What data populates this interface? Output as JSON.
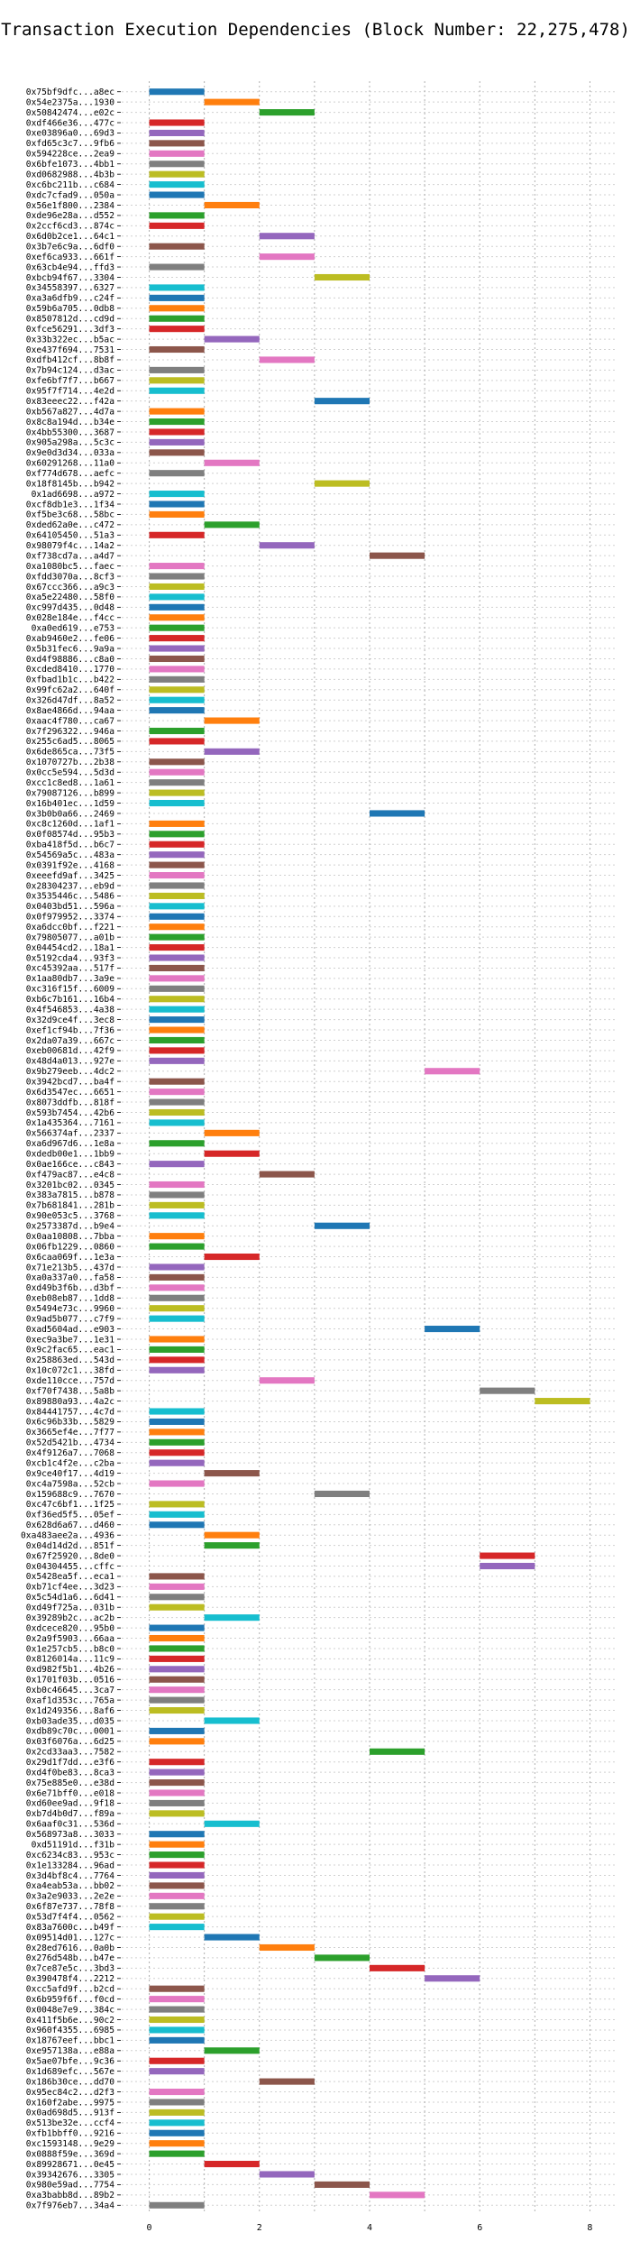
{
  "chart_data": {
    "type": "bar",
    "orientation": "horizontal-gantt",
    "title": "Transaction Execution Dependencies (Block Number: 22,275,478)",
    "xlabel": "",
    "ylabel": "",
    "xlim": [
      -0.5,
      8.5
    ],
    "xticks": [
      0,
      2,
      4,
      6,
      8
    ],
    "grid": true,
    "colors": [
      "#1f77b4",
      "#ff7f0e",
      "#2ca02c",
      "#d62728",
      "#9467bd",
      "#8c564b",
      "#e377c2",
      "#7f7f7f",
      "#bcbd22",
      "#17becf"
    ],
    "transactions": [
      "0x75bf9dfc...a8ec",
      "0x54e2375a...1930",
      "0x50842474...e02c",
      "0xdf466e36...477c",
      "0xe03896a0...69d3",
      "0xfd65c3c7...9fb6",
      "0x594228ce...2ea9",
      "0x6bfe1073...4bb1",
      "0xd0682988...4b3b",
      "0xc6bc211b...c684",
      "0xdc7cfad9...050a",
      "0x56e1f800...2384",
      "0xde96e28a...d552",
      "0x2ccf6cd3...874c",
      "0x6d0b2ce1...64c1",
      "0x3b7e6c9a...6df0",
      "0xef6ca933...661f",
      "0x63cb4e94...ffd3",
      "0xbcb94f67...3304",
      "0x34558397...6327",
      "0xa3a6dfb9...c24f",
      "0x59b6a705...0db8",
      "0x8507812d...cd9d",
      "0xfce56291...3df3",
      "0x33b322ec...b5ac",
      "0xe437f694...7531",
      "0xdfb412cf...8b8f",
      "0x7b94c124...d3ac",
      "0xfe6bf7f7...b667",
      "0x95f7f714...4e2d",
      "0x83eeec22...f42a",
      "0xb567a827...4d7a",
      "0x8c8a194d...b34e",
      "0x4bb55300...3687",
      "0x905a298a...5c3c",
      "0x9e0d3d34...033a",
      "0x60291268...11a0",
      "0xf774d678...aefc",
      "0x18f8145b...b942",
      "0x1ad6698...a972",
      "0xcf8db1e3...1f34",
      "0xf5be3c68...58bc",
      "0xded62a0e...c472",
      "0x64105450...51a3",
      "0x98079f4c...14a2",
      "0xf738cd7a...a4d7",
      "0xa1080bc5...faec",
      "0xfdd3070a...8cf3",
      "0x67ccc366...a9c3",
      "0xa5e22480...58f0",
      "0xc997d435...0d48",
      "0x028e184e...f4cc",
      "0xa0ed619...e753",
      "0xab9460e2...fe06",
      "0x5b31fec6...9a9a",
      "0xd4f98886...c8a0",
      "0xcded8410...1770",
      "0xfbad1b1c...b422",
      "0x99fc62a2...640f",
      "0x326d47df...8a52",
      "0x8ae4866d...94aa",
      "0xaac4f780...ca67",
      "0x7f296322...946a",
      "0x255c6ad5...8065",
      "0x6de865ca...73f5",
      "0x1070727b...2b38",
      "0x0cc5e594...5d3d",
      "0xcc1c8ed8...1a61",
      "0x79087126...b899",
      "0x16b401ec...1d59",
      "0x3b0b0a66...2469",
      "0xc8c1260d...1af1",
      "0x0f08574d...95b3",
      "0xba418f5d...b6c7",
      "0x54569a5c...483a",
      "0x0391f92e...4168",
      "0xeeefd9af...3425",
      "0x28304237...eb9d",
      "0x3535446c...5486",
      "0x0403bd51...596a",
      "0x0f979952...3374",
      "0xa6dcc0bf...f221",
      "0x79805077...a01b",
      "0x04454cd2...18a1",
      "0x5192cda4...93f3",
      "0xc45392aa...517f",
      "0x1aa80db7...3a9e",
      "0xc316f15f...6009",
      "0xb6c7b161...16b4",
      "0x4f546853...4a38",
      "0x32d9ce4f...3ec8",
      "0xef1cf94b...7f36",
      "0x2da07a39...667c",
      "0xeb00681d...42f9",
      "0x48d4a013...927e",
      "0x9b279eeb...4dc2",
      "0x3942bcd7...ba4f",
      "0x6d3547ec...6651",
      "0x8073ddfb...818f",
      "0x593b7454...42b6",
      "0x1a435364...7161",
      "0x566374af...2337",
      "0xa6d967d6...1e8a",
      "0xdedb00e1...1bb9",
      "0x0ae166ce...c843",
      "0xf479ac87...e4c8",
      "0x3201bc02...0345",
      "0x383a7815...b878",
      "0x7b681841...281b",
      "0x90e053c5...3768",
      "0x2573387d...b9e4",
      "0x0aa10808...7bba",
      "0x06fb1229...0860",
      "0x6caa069f...1e3a",
      "0x71e213b5...437d",
      "0xa0a337a0...fa58",
      "0xd49b3f6b...d3bf",
      "0xeb08eb87...1dd8",
      "0x5494e73c...9960",
      "0x9ad5b077...c7f9",
      "0xad5604ad...e903",
      "0xec9a3be7...1e31",
      "0x9c2fac65...eac1",
      "0x258863ed...543d",
      "0x10c072c1...38fd",
      "0xde110cce...757d",
      "0xf70f7438...5a8b",
      "0x89880a93...4a2c",
      "0x84441757...4c7d",
      "0x6c96b33b...5829",
      "0x3665ef4e...7f77",
      "0x52d5421b...4734",
      "0x4f9126a7...7068",
      "0xcb1c4f2e...c2ba",
      "0x9ce40f17...4d19",
      "0xc4a7598a...52cb",
      "0x159688c9...7670",
      "0xc47c6bf1...1f25",
      "0xf36ed5f5...05ef",
      "0x628d6a67...d460",
      "0xa483aee2a...4936",
      "0x04d14d2d...851f",
      "0x67f25920...8de0",
      "0x04304455...cffc",
      "0x5428ea5f...eca1",
      "0xb71cf4ee...3d23",
      "0x5c54d1a6...6d41",
      "0xd49f725a...031b",
      "0x39289b2c...ac2b",
      "0xdcece820...95b0",
      "0x2a9f5903...66aa",
      "0x1e257cb5...b8c0",
      "0x8126014a...11c9",
      "0xd982f5b1...4b26",
      "0x1701f03b...0516",
      "0xb0c46645...3ca7",
      "0xaf1d353c...765a",
      "0x1d249356...8af6",
      "0xb03ade35...d035",
      "0xdb89c70c...0001",
      "0x03f6076a...6d25",
      "0x2cd33aa3...7582",
      "0x29d1f7dd...e3f6",
      "0xd4f0be83...8ca3",
      "0x75e885e0...e38d",
      "0x6e71bff0...e018",
      "0xd60ee9ad...9f18",
      "0xb7d4b0d7...f89a",
      "0x6aaf0c31...536d",
      "0x568973a8...3033",
      "0xd51191d...f31b",
      "0xc6234c83...953c",
      "0x1e133284...96ad",
      "0x3d4bf8c4...7764",
      "0xa4eab53a...bb02",
      "0x3a2e9033...2e2e",
      "0x6f87e737...78f8",
      "0x53d7f4f4...0562",
      "0x83a7600c...b49f",
      "0x09514d01...127c",
      "0x28ed7616...0a0b",
      "0x276d548b...b47e",
      "0x7ce87e5c...3bd3",
      "0x390478f4...2212",
      "0xcc5afd9f...b2cd",
      "0x6b959f6f...f0cd",
      "0x0048e7e9...384c",
      "0x411f5b6e...90c2",
      "0x960f4355...6985",
      "0x18767eef...bbc1",
      "0xe957138a...e88a",
      "0x5ae07bfe...9c36",
      "0x1d689efc...567e",
      "0x186b30ce...dd70",
      "0x95ec84c2...d2f3",
      "0x160f2abe...9975",
      "0x0ad698d5...913f",
      "0x513be32e...ccf4",
      "0xfb1bbff0...9216",
      "0xc1593148...9e29",
      "0x0888f59e...369d",
      "0x89928671...0e45",
      "0x39342676...3305",
      "0x980e59ad...7754",
      "0xa3babb8d...89b2",
      "0x7f976eb7...34a4"
    ],
    "bars": [
      [
        0,
        0,
        0
      ],
      [
        1,
        1,
        1
      ],
      [
        2,
        2,
        2
      ],
      [
        0,
        0,
        3
      ],
      [
        0,
        0,
        4
      ],
      [
        0,
        0,
        5
      ],
      [
        0,
        0,
        6
      ],
      [
        0,
        0,
        7
      ],
      [
        0,
        0,
        8
      ],
      [
        0,
        0,
        9
      ],
      [
        0,
        0,
        0
      ],
      [
        1,
        1,
        1
      ],
      [
        0,
        0,
        2
      ],
      [
        0,
        0,
        3
      ],
      [
        2,
        2,
        4
      ],
      [
        0,
        0,
        5
      ],
      [
        2,
        2,
        6
      ],
      [
        0,
        0,
        7
      ],
      [
        3,
        3,
        8
      ],
      [
        0,
        0,
        9
      ],
      [
        0,
        0,
        0
      ],
      [
        0,
        0,
        1
      ],
      [
        0,
        0,
        2
      ],
      [
        0,
        0,
        3
      ],
      [
        1,
        1,
        4
      ],
      [
        0,
        0,
        5
      ],
      [
        2,
        2,
        6
      ],
      [
        0,
        0,
        7
      ],
      [
        0,
        0,
        8
      ],
      [
        0,
        0,
        9
      ],
      [
        3,
        3,
        0
      ],
      [
        0,
        0,
        1
      ],
      [
        0,
        0,
        2
      ],
      [
        0,
        0,
        3
      ],
      [
        0,
        0,
        4
      ],
      [
        0,
        0,
        5
      ],
      [
        1,
        1,
        6
      ],
      [
        0,
        0,
        7
      ],
      [
        3,
        3,
        8
      ],
      [
        0,
        0,
        9
      ],
      [
        0,
        0,
        0
      ],
      [
        0,
        0,
        1
      ],
      [
        1,
        1,
        2
      ],
      [
        0,
        0,
        3
      ],
      [
        2,
        2,
        4
      ],
      [
        4,
        4,
        5
      ],
      [
        0,
        0,
        6
      ],
      [
        0,
        0,
        7
      ],
      [
        0,
        0,
        8
      ],
      [
        0,
        0,
        9
      ],
      [
        0,
        0,
        0
      ],
      [
        0,
        0,
        1
      ],
      [
        0,
        0,
        2
      ],
      [
        0,
        0,
        3
      ],
      [
        0,
        0,
        4
      ],
      [
        0,
        0,
        5
      ],
      [
        0,
        0,
        6
      ],
      [
        0,
        0,
        7
      ],
      [
        0,
        0,
        8
      ],
      [
        0,
        0,
        9
      ],
      [
        0,
        0,
        0
      ],
      [
        1,
        1,
        1
      ],
      [
        0,
        0,
        2
      ],
      [
        0,
        0,
        3
      ],
      [
        1,
        1,
        4
      ],
      [
        0,
        0,
        5
      ],
      [
        0,
        0,
        6
      ],
      [
        0,
        0,
        7
      ],
      [
        0,
        0,
        8
      ],
      [
        0,
        0,
        9
      ],
      [
        4,
        4,
        0
      ],
      [
        0,
        0,
        1
      ],
      [
        0,
        0,
        2
      ],
      [
        0,
        0,
        3
      ],
      [
        0,
        0,
        4
      ],
      [
        0,
        0,
        5
      ],
      [
        0,
        0,
        6
      ],
      [
        0,
        0,
        7
      ],
      [
        0,
        0,
        8
      ],
      [
        0,
        0,
        9
      ],
      [
        0,
        0,
        0
      ],
      [
        0,
        0,
        1
      ],
      [
        0,
        0,
        2
      ],
      [
        0,
        0,
        3
      ],
      [
        0,
        0,
        4
      ],
      [
        0,
        0,
        5
      ],
      [
        0,
        0,
        6
      ],
      [
        0,
        0,
        7
      ],
      [
        0,
        0,
        8
      ],
      [
        0,
        0,
        9
      ],
      [
        0,
        0,
        0
      ],
      [
        0,
        0,
        1
      ],
      [
        0,
        0,
        2
      ],
      [
        0,
        0,
        3
      ],
      [
        0,
        0,
        4
      ],
      [
        5,
        5,
        6
      ],
      [
        0,
        0,
        5
      ],
      [
        0,
        0,
        6
      ],
      [
        0,
        0,
        7
      ],
      [
        0,
        0,
        8
      ],
      [
        0,
        0,
        9
      ],
      [
        1,
        1,
        1
      ],
      [
        0,
        0,
        2
      ],
      [
        1,
        1,
        3
      ],
      [
        0,
        0,
        4
      ],
      [
        2,
        2,
        5
      ],
      [
        0,
        0,
        6
      ],
      [
        0,
        0,
        7
      ],
      [
        0,
        0,
        8
      ],
      [
        0,
        0,
        9
      ],
      [
        3,
        3,
        0
      ],
      [
        0,
        0,
        1
      ],
      [
        0,
        0,
        2
      ],
      [
        1,
        1,
        3
      ],
      [
        0,
        0,
        4
      ],
      [
        0,
        0,
        5
      ],
      [
        0,
        0,
        6
      ],
      [
        0,
        0,
        7
      ],
      [
        0,
        0,
        8
      ],
      [
        0,
        0,
        9
      ],
      [
        5,
        5,
        0
      ],
      [
        0,
        0,
        1
      ],
      [
        0,
        0,
        2
      ],
      [
        0,
        0,
        3
      ],
      [
        0,
        0,
        4
      ],
      [
        2,
        2,
        6
      ],
      [
        6,
        6,
        7
      ],
      [
        7,
        7,
        8
      ],
      [
        0,
        0,
        9
      ],
      [
        0,
        0,
        0
      ],
      [
        0,
        0,
        1
      ],
      [
        0,
        0,
        2
      ],
      [
        0,
        0,
        3
      ],
      [
        0,
        0,
        4
      ],
      [
        1,
        1,
        5
      ],
      [
        0,
        0,
        6
      ],
      [
        3,
        3,
        7
      ],
      [
        0,
        0,
        8
      ],
      [
        0,
        0,
        9
      ],
      [
        0,
        0,
        0
      ],
      [
        1,
        1,
        1
      ],
      [
        1,
        1,
        2
      ],
      [
        6,
        6,
        3
      ],
      [
        6,
        6,
        4
      ],
      [
        0,
        0,
        5
      ],
      [
        0,
        0,
        6
      ],
      [
        0,
        0,
        7
      ],
      [
        0,
        0,
        8
      ],
      [
        1,
        1,
        9
      ],
      [
        0,
        0,
        0
      ],
      [
        0,
        0,
        1
      ],
      [
        0,
        0,
        2
      ],
      [
        0,
        0,
        3
      ],
      [
        0,
        0,
        4
      ],
      [
        0,
        0,
        5
      ],
      [
        0,
        0,
        6
      ],
      [
        0,
        0,
        7
      ],
      [
        0,
        0,
        8
      ],
      [
        1,
        1,
        9
      ],
      [
        0,
        0,
        0
      ],
      [
        0,
        0,
        1
      ],
      [
        4,
        4,
        2
      ],
      [
        0,
        0,
        3
      ],
      [
        0,
        0,
        4
      ],
      [
        0,
        0,
        5
      ],
      [
        0,
        0,
        6
      ],
      [
        0,
        0,
        7
      ],
      [
        0,
        0,
        8
      ],
      [
        1,
        1,
        9
      ],
      [
        0,
        0,
        0
      ],
      [
        0,
        0,
        1
      ],
      [
        0,
        0,
        2
      ],
      [
        0,
        0,
        3
      ],
      [
        0,
        0,
        4
      ],
      [
        0,
        0,
        5
      ],
      [
        0,
        0,
        6
      ],
      [
        0,
        0,
        7
      ],
      [
        0,
        0,
        8
      ],
      [
        0,
        0,
        9
      ],
      [
        1,
        1,
        0
      ],
      [
        2,
        2,
        1
      ],
      [
        3,
        3,
        2
      ],
      [
        4,
        4,
        3
      ],
      [
        5,
        5,
        4
      ],
      [
        0,
        0,
        5
      ],
      [
        0,
        0,
        6
      ],
      [
        0,
        0,
        7
      ],
      [
        0,
        0,
        8
      ],
      [
        0,
        0,
        9
      ],
      [
        0,
        0,
        0
      ],
      [
        1,
        1,
        2
      ],
      [
        0,
        0,
        3
      ],
      [
        0,
        0,
        4
      ],
      [
        2,
        2,
        5
      ],
      [
        0,
        0,
        6
      ],
      [
        0,
        0,
        7
      ],
      [
        0,
        0,
        8
      ],
      [
        0,
        0,
        9
      ],
      [
        0,
        0,
        0
      ],
      [
        0,
        0,
        1
      ],
      [
        0,
        0,
        2
      ],
      [
        1,
        1,
        3
      ],
      [
        2,
        2,
        4
      ],
      [
        3,
        3,
        5
      ],
      [
        4,
        4,
        6
      ],
      [
        0,
        0,
        7
      ]
    ]
  }
}
